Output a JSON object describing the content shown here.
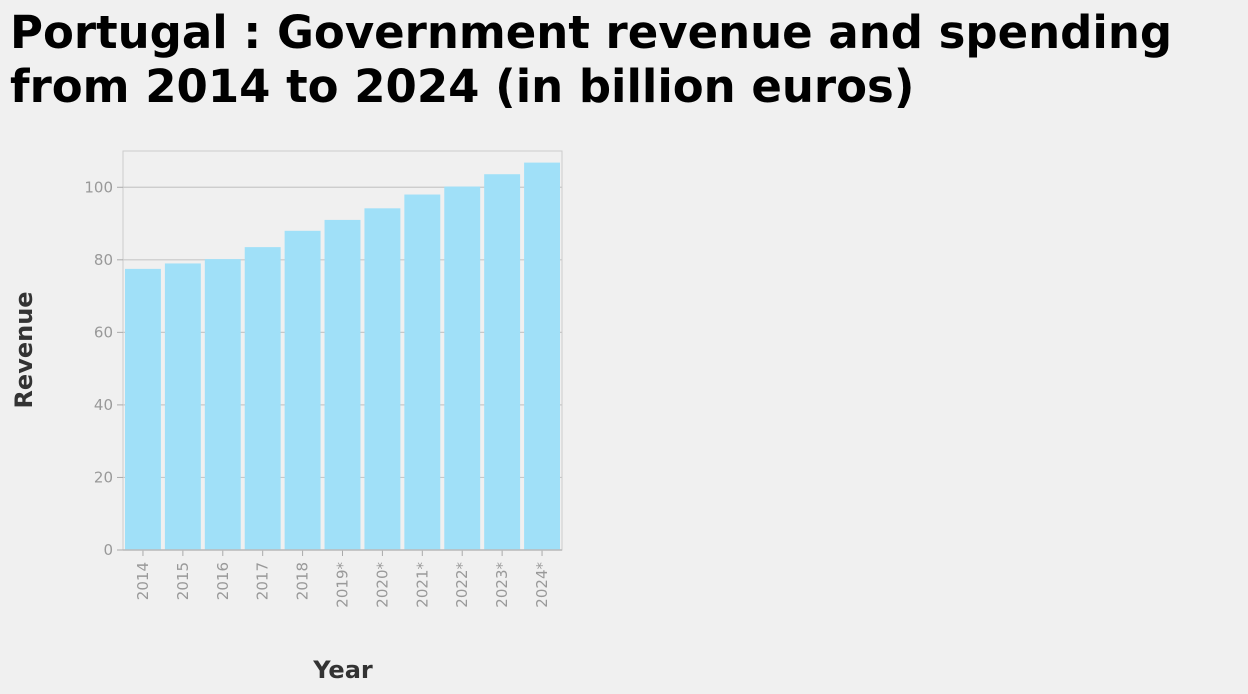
{
  "chart_data": {
    "type": "bar",
    "title": "Portugal : Government revenue and spending from 2014 to 2024 (in billion euros)",
    "xlabel": "Year",
    "ylabel": "Revenue",
    "categories": [
      "2014",
      "2015",
      "2016",
      "2017",
      "2018",
      "2019*",
      "2020*",
      "2021*",
      "2022*",
      "2023*",
      "2024*"
    ],
    "values": [
      77.5,
      79.0,
      80.2,
      83.5,
      88.0,
      91.0,
      94.2,
      98.0,
      100.2,
      103.6,
      106.8
    ],
    "ylim": [
      0,
      110
    ],
    "yticks": [
      0,
      20,
      40,
      60,
      80,
      100
    ],
    "grid": true,
    "bar_color": "#a0e0f8",
    "grid_color": "#c8c8c8"
  }
}
